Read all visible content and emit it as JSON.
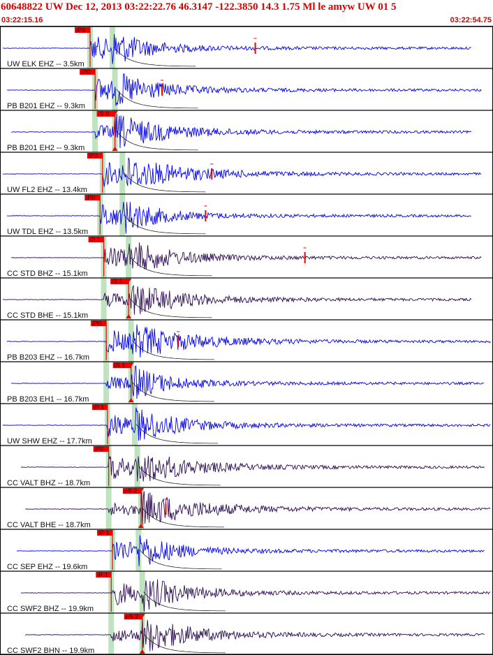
{
  "header": {
    "title": "60648822 UW Dec 12, 2013 03:22:22.76    46.3147 -122.3850 14.3 1.75 Ml le amyw UW 01    5",
    "start_time": "03:22:15.16",
    "end_time": "03:22:54.75"
  },
  "colors": {
    "frame": "#000000",
    "trace_blue": "#0000ee",
    "trace_dark": "#2a0a50",
    "pick_red": "#ee0000",
    "pick_band": "#bfe3bf",
    "header_red": "#d80000"
  },
  "time_window_seconds": 39.59,
  "channels": [
    {
      "label": "UW ELK EHZ -- 3.5km",
      "color": "trace_blue",
      "p_pick": "iP0",
      "s_pick": "",
      "p_time": 7.2,
      "s_time": 9.0,
      "amp_end": 20.5
    },
    {
      "label": "PB B201 EHZ -- 9.3km",
      "color": "trace_blue",
      "p_pick": "iP0",
      "s_pick": "",
      "p_time": 7.6,
      "s_time": 9.2,
      "amp_end": 13.0
    },
    {
      "label": "PB B201 EH2 -- 9.3km",
      "color": "trace_blue",
      "p_pick": "",
      "s_pick": "iS 0",
      "p_time": 7.6,
      "s_time": 9.2,
      "amp_end": 0
    },
    {
      "label": "UW FL2 EHZ -- 13.4km",
      "color": "trace_blue",
      "p_pick": "iP0",
      "s_pick": "",
      "p_time": 8.2,
      "s_time": 9.8,
      "amp_end": 17.0
    },
    {
      "label": "UW TDL EHZ -- 13.5km",
      "color": "trace_blue",
      "p_pick": "iP0",
      "s_pick": "",
      "p_time": 8.0,
      "s_time": 9.8,
      "amp_end": 16.5
    },
    {
      "label": "CC STD BHZ -- 15.1km",
      "color": "trace_dark",
      "p_pick": "iP 1",
      "s_pick": "",
      "p_time": 8.3,
      "s_time": 10.3,
      "amp_end": 24.5
    },
    {
      "label": "CC STD BHE -- 15.1km",
      "color": "trace_dark",
      "p_pick": "",
      "s_pick": "iS 1",
      "p_time": 8.3,
      "s_time": 10.3,
      "amp_end": 0
    },
    {
      "label": "PB B203 EHZ -- 16.7km",
      "color": "trace_blue",
      "p_pick": "iP0",
      "s_pick": "",
      "p_time": 8.5,
      "s_time": 10.5,
      "amp_end": 14.3
    },
    {
      "label": "PB B203 EH1 -- 16.7km",
      "color": "trace_blue",
      "p_pick": "",
      "s_pick": "iS 1",
      "p_time": 8.5,
      "s_time": 10.5,
      "amp_end": 0
    },
    {
      "label": "UW SHW EHZ -- 17.7km",
      "color": "trace_blue",
      "p_pick": "iP 1",
      "s_pick": "",
      "p_time": 8.6,
      "s_time": 10.8,
      "amp_end": 0
    },
    {
      "label": "CC VALT BHZ -- 18.7km",
      "color": "trace_dark",
      "p_pick": "iP0",
      "s_pick": "",
      "p_time": 8.7,
      "s_time": 11.0,
      "amp_end": 0
    },
    {
      "label": "CC VALT BHE -- 18.7km",
      "color": "trace_dark",
      "p_pick": "",
      "s_pick": "eS 2",
      "p_time": 8.7,
      "s_time": 11.3,
      "amp_end": 13.3
    },
    {
      "label": "CC SEP EHZ -- 19.6km",
      "color": "trace_blue",
      "p_pick": "iP 1",
      "s_pick": "",
      "p_time": 9.0,
      "s_time": 11.1,
      "amp_end": 0
    },
    {
      "label": "CC SWF2 BHZ -- 19.9km",
      "color": "trace_dark",
      "p_pick": "iP 1",
      "s_pick": "",
      "p_time": 8.9,
      "s_time": 11.4,
      "amp_end": 0
    },
    {
      "label": "CC SWF2 BHN -- 19.9km",
      "color": "trace_dark",
      "p_pick": "",
      "s_pick": "eS 2",
      "p_time": 8.9,
      "s_time": 11.4,
      "amp_end": 0
    }
  ]
}
